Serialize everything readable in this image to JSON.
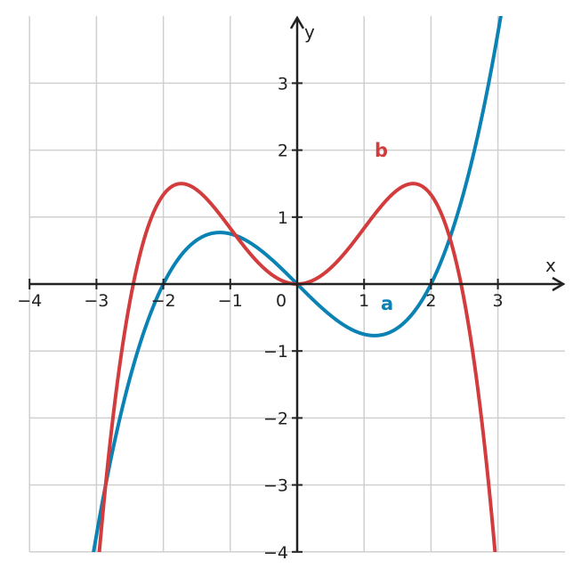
{
  "chart_data": {
    "type": "line",
    "title": "",
    "xlabel": "x",
    "ylabel": "y",
    "xlim": [
      -4,
      4
    ],
    "ylim": [
      -4,
      4
    ],
    "grid": true,
    "x_ticks": [
      -4,
      -3,
      -2,
      -1,
      1,
      2,
      3
    ],
    "y_ticks": [
      -4,
      -3,
      -2,
      -1,
      1,
      2,
      3
    ],
    "origin_label": "0",
    "series": [
      {
        "name": "a",
        "color": "#0a82b4",
        "formula": "y = x^3/4 - x",
        "x": [
          -3.0,
          -2.5,
          -2.0,
          -1.5,
          -1.155,
          -0.5,
          0,
          0.5,
          1.155,
          1.5,
          2.0,
          2.5,
          3.0
        ],
        "y": [
          -3.75,
          -1.406,
          0.0,
          0.656,
          0.77,
          0.469,
          0.0,
          -0.469,
          -0.77,
          -0.656,
          0.0,
          1.406,
          3.75
        ]
      },
      {
        "name": "b",
        "color": "#d33c3c",
        "formula": "y = x^2 - x^4/6",
        "x": [
          -2.9,
          -2.5,
          -2.449,
          -2.0,
          -1.732,
          -1.0,
          0,
          1.0,
          1.732,
          2.0,
          2.449,
          2.5,
          2.9
        ],
        "y": [
          -3.72,
          -0.26,
          0.0,
          1.333,
          1.5,
          0.833,
          0.0,
          0.833,
          1.5,
          1.333,
          0.0,
          -0.26,
          -3.72
        ]
      }
    ]
  }
}
